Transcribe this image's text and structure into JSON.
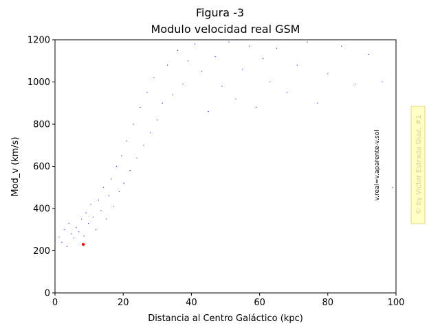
{
  "chart_data": {
    "type": "scatter",
    "suptitle": "Figura -3",
    "title": "Modulo velocidad real GSM",
    "xlabel": "Distancia al Centro Galáctico (kpc)",
    "ylabel": "Mod_v (km/s)",
    "xlim": [
      0,
      100
    ],
    "ylim": [
      0,
      1200
    ],
    "x_ticks": [
      0,
      20,
      40,
      60,
      80,
      100
    ],
    "y_ticks": [
      0,
      200,
      400,
      600,
      800,
      1000,
      1200
    ],
    "grid": false,
    "annotation": "v.real=v.aparente-v.sol",
    "watermark": "© by Victor Estrada Diaz, #1",
    "series": [
      {
        "color": "#0000ff",
        "marker_size": "tiny",
        "points": [
          [
            1.2,
            265
          ],
          [
            2.0,
            240
          ],
          [
            2.8,
            300
          ],
          [
            3.5,
            220
          ],
          [
            4.1,
            330
          ],
          [
            4.8,
            280
          ],
          [
            5.5,
            260
          ],
          [
            6.2,
            310
          ],
          [
            7.0,
            290
          ],
          [
            7.8,
            350
          ],
          [
            8.5,
            270
          ],
          [
            9.1,
            380
          ],
          [
            9.8,
            330
          ],
          [
            10.5,
            420
          ],
          [
            11.2,
            360
          ],
          [
            12.0,
            300
          ],
          [
            12.8,
            440
          ],
          [
            13.5,
            390
          ],
          [
            14.2,
            500
          ],
          [
            15.0,
            350
          ],
          [
            15.8,
            460
          ],
          [
            16.5,
            540
          ],
          [
            17.2,
            410
          ],
          [
            18.0,
            600
          ],
          [
            18.8,
            480
          ],
          [
            19.5,
            650
          ],
          [
            20.2,
            520
          ],
          [
            21.0,
            720
          ],
          [
            22.0,
            580
          ],
          [
            23.0,
            800
          ],
          [
            24.0,
            640
          ],
          [
            25.0,
            880
          ],
          [
            26.0,
            700
          ],
          [
            27.0,
            950
          ],
          [
            28.0,
            760
          ],
          [
            29.0,
            1020
          ],
          [
            30.0,
            820
          ],
          [
            31.5,
            900
          ],
          [
            33.0,
            1080
          ],
          [
            34.5,
            940
          ],
          [
            36.0,
            1150
          ],
          [
            37.5,
            990
          ],
          [
            39.0,
            1100
          ],
          [
            41.0,
            1180
          ],
          [
            43.0,
            1050
          ],
          [
            45.0,
            860
          ],
          [
            47.0,
            1120
          ],
          [
            49.0,
            980
          ],
          [
            51.0,
            1190
          ],
          [
            53.0,
            920
          ],
          [
            55.0,
            1060
          ],
          [
            57.0,
            1170
          ],
          [
            59.0,
            880
          ],
          [
            61.0,
            1110
          ],
          [
            63.0,
            1000
          ],
          [
            65.0,
            1160
          ],
          [
            68.0,
            950
          ],
          [
            71.0,
            1080
          ],
          [
            74.0,
            1190
          ],
          [
            77.0,
            900
          ],
          [
            80.0,
            1040
          ],
          [
            84.0,
            1170
          ],
          [
            88.0,
            990
          ],
          [
            92.0,
            1130
          ],
          [
            96.0,
            1000
          ],
          [
            99.0,
            500
          ]
        ]
      },
      {
        "color": "#ff0000",
        "marker_size": "small",
        "points": [
          [
            8.3,
            230
          ]
        ]
      }
    ]
  }
}
